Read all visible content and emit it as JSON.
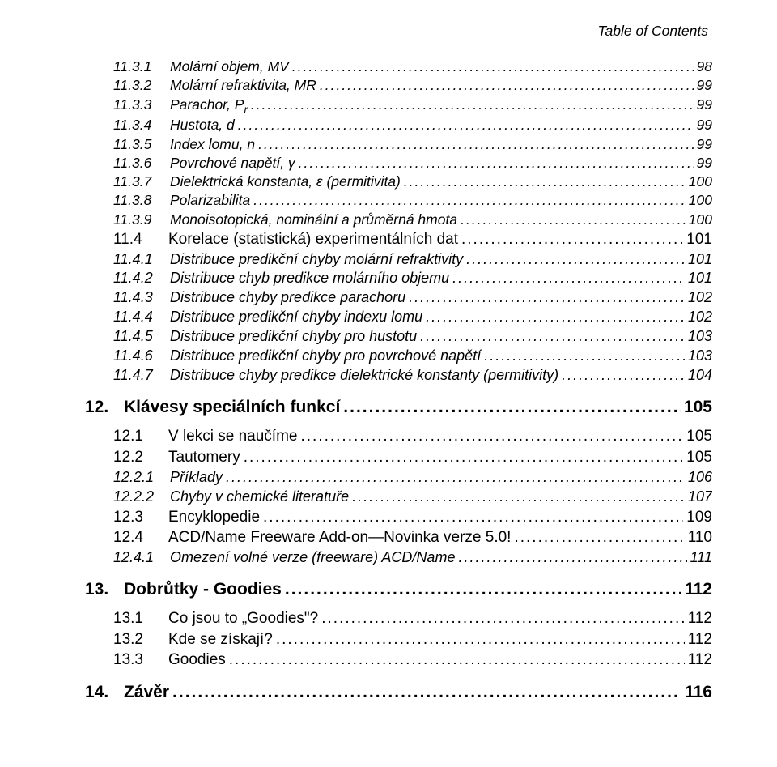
{
  "header": "Table of Contents",
  "entries": [
    {
      "cls": "l3",
      "num": "11.3.1",
      "label": "Molární objem, MV",
      "page": "98"
    },
    {
      "cls": "l3",
      "num": "11.3.2",
      "label": "Molární refraktivita, MR",
      "page": "99"
    },
    {
      "cls": "l3",
      "num": "11.3.3",
      "label": "Parachor, P",
      "sub": "r",
      "page": "99"
    },
    {
      "cls": "l3",
      "num": "11.3.4",
      "label": "Hustota, d",
      "page": "99"
    },
    {
      "cls": "l3",
      "num": "11.3.5",
      "label": "Index lomu, n",
      "page": "99"
    },
    {
      "cls": "l3",
      "num": "11.3.6",
      "label": "Povrchové napětí, γ",
      "page": "99"
    },
    {
      "cls": "l3",
      "num": "11.3.7",
      "label": "Dielektrická konstanta, ε (permitivita)",
      "page": "100"
    },
    {
      "cls": "l3",
      "num": "11.3.8",
      "label": "Polarizabilita",
      "page": "100"
    },
    {
      "cls": "l3",
      "num": "11.3.9",
      "label": "Monoisotopická, nominální a průměrná hmota",
      "page": "100"
    },
    {
      "cls": "l2",
      "num": "11.4",
      "label": "Korelace (statistická) experimentálních dat",
      "page": "101"
    },
    {
      "cls": "l3b",
      "num": "11.4.1",
      "label": "Distribuce predikční chyby molární refraktivity",
      "page": "101"
    },
    {
      "cls": "l3b",
      "num": "11.4.2",
      "label": "Distribuce chyb predikce molárního objemu",
      "page": "101"
    },
    {
      "cls": "l3b",
      "num": "11.4.3",
      "label": "Distribuce chyby predikce parachoru",
      "page": "102"
    },
    {
      "cls": "l3b",
      "num": "11.4.4",
      "label": "Distribuce predikční chyby indexu lomu",
      "page": "102"
    },
    {
      "cls": "l3b",
      "num": "11.4.5",
      "label": "Distribuce predikční chyby pro hustotu",
      "page": "103"
    },
    {
      "cls": "l3b",
      "num": "11.4.6",
      "label": "Distribuce predikční chyby pro povrchové napětí",
      "page": "103"
    },
    {
      "cls": "l3b",
      "num": "11.4.7",
      "label": "Distribuce chyby predikce dielektrické konstanty (permitivity)",
      "page": "104"
    },
    {
      "cls": "l1",
      "num": "12.",
      "label": "Klávesy speciálních funkcí",
      "page": "105"
    },
    {
      "cls": "l2",
      "num": "12.1",
      "label": "V lekci se naučíme",
      "page": "105"
    },
    {
      "cls": "l2",
      "num": "12.2",
      "label": "Tautomery",
      "page": "105"
    },
    {
      "cls": "l3b",
      "num": "12.2.1",
      "label": "Příklady",
      "page": "106"
    },
    {
      "cls": "l3b",
      "num": "12.2.2",
      "label": "Chyby v chemické literatuře",
      "page": "107"
    },
    {
      "cls": "l2",
      "num": "12.3",
      "label": "Encyklopedie",
      "page": "109"
    },
    {
      "cls": "l2",
      "num": "12.4",
      "label": "ACD/Name Freeware Add-on—Novinka verze 5.0!",
      "page": "110"
    },
    {
      "cls": "l3b",
      "num": "12.4.1",
      "label": "Omezení volné verze (freeware) ACD/Name",
      "page": "111"
    },
    {
      "cls": "l1",
      "num": "13.",
      "label": "Dobrůtky - Goodies",
      "page": "112"
    },
    {
      "cls": "l2",
      "num": "13.1",
      "label": "Co jsou to „Goodies\"?",
      "page": "112"
    },
    {
      "cls": "l2",
      "num": "13.2",
      "label": "Kde se získají?",
      "page": "112"
    },
    {
      "cls": "l2",
      "num": "13.3",
      "label": "Goodies",
      "page": "112"
    },
    {
      "cls": "l1",
      "num": "14.",
      "label": "Závěr",
      "page": "116"
    }
  ]
}
